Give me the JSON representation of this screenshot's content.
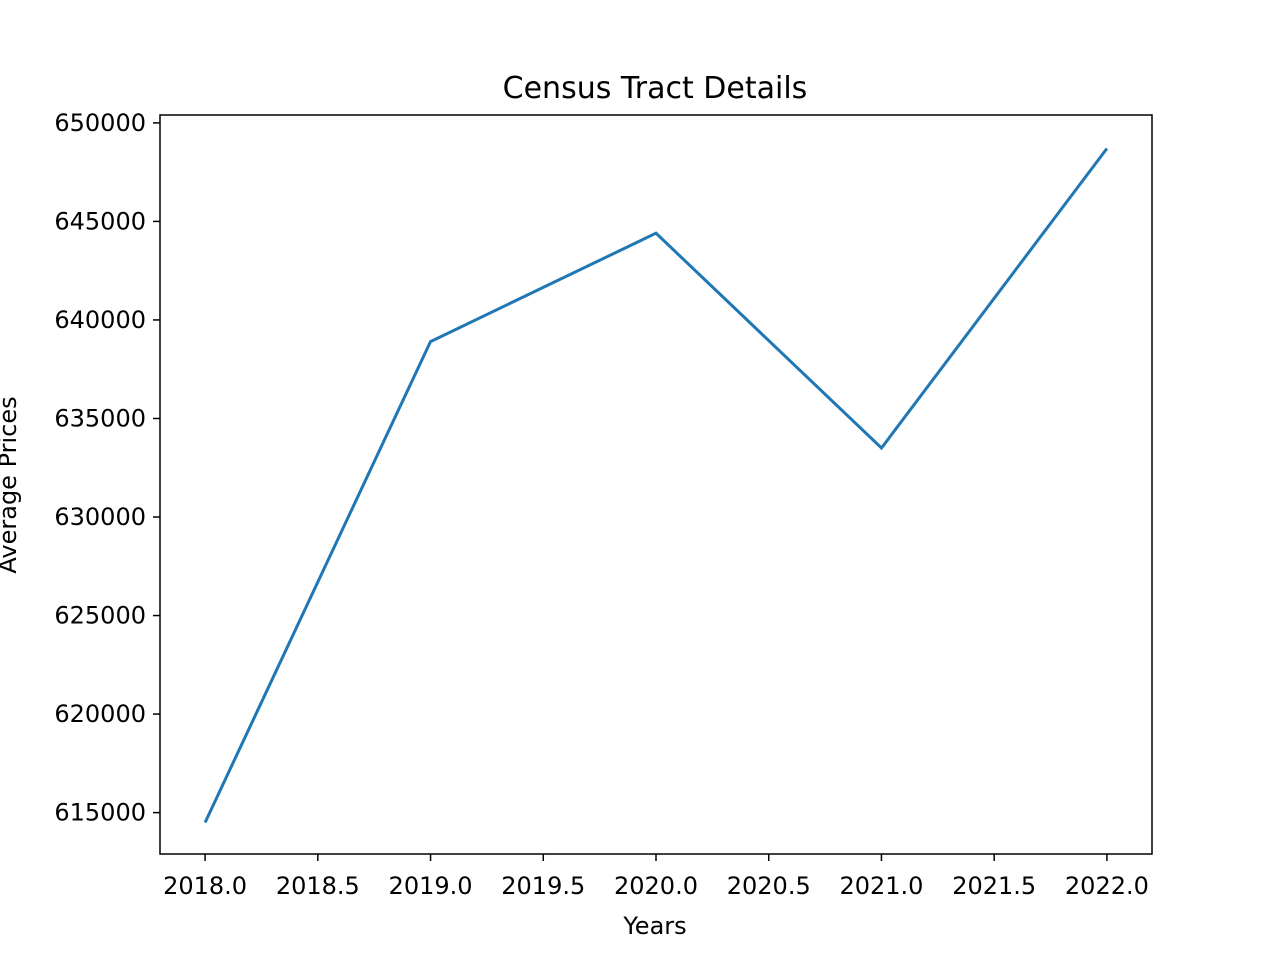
{
  "chart_data": {
    "type": "line",
    "title": "Census Tract Details",
    "xlabel": "Years",
    "ylabel": "Average Prices",
    "x": [
      2018,
      2019,
      2020,
      2021,
      2022
    ],
    "series": [
      {
        "values": [
          614500,
          638900,
          644400,
          633500,
          648700
        ]
      }
    ],
    "xlim": [
      2017.8,
      2022.2
    ],
    "ylim": [
      612900,
      650400
    ],
    "xticks": [
      2018.0,
      2018.5,
      2019.0,
      2019.5,
      2020.0,
      2020.5,
      2021.0,
      2021.5,
      2022.0
    ],
    "xtick_labels": [
      "2018.0",
      "2018.5",
      "2019.0",
      "2019.5",
      "2020.0",
      "2020.5",
      "2021.0",
      "2021.5",
      "2022.0"
    ],
    "yticks": [
      615000,
      620000,
      625000,
      630000,
      635000,
      640000,
      645000,
      650000
    ],
    "ytick_labels": [
      "615000",
      "620000",
      "625000",
      "630000",
      "635000",
      "640000",
      "645000",
      "650000"
    ],
    "line_color": "#1f77b4",
    "grid": false,
    "legend": "none"
  }
}
